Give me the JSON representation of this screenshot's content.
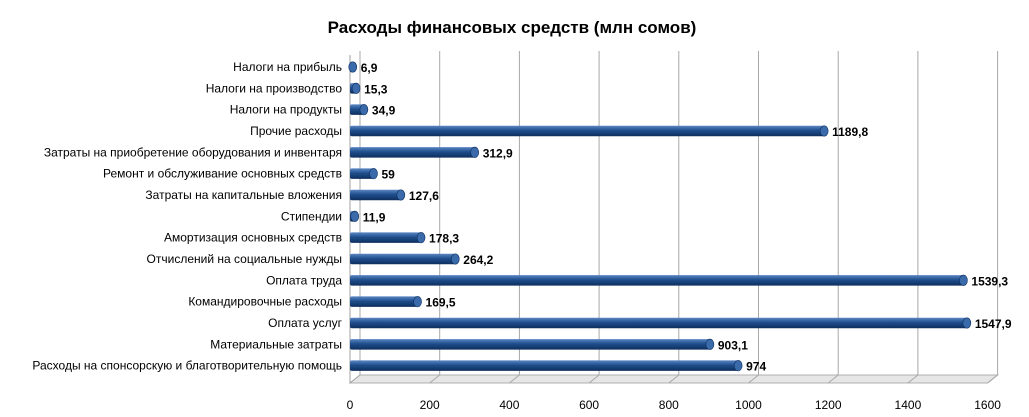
{
  "chart_data": {
    "type": "bar",
    "orientation": "horizontal",
    "title": "Расходы финансовых средств (млн сомов)",
    "xlabel": "",
    "ylabel": "",
    "xlim": [
      0,
      1600
    ],
    "x_ticks": [
      "0",
      "200",
      "400",
      "600",
      "800",
      "1000",
      "1200",
      "1400",
      "1600"
    ],
    "grid": true,
    "legend": "none",
    "bar_color": "#1f4e8c",
    "categories": [
      "Налоги на прибыль",
      "Налоги на производство",
      "Налоги на продукты",
      "Прочие расходы",
      "Затраты на приобретение оборудования и инвентаря",
      "Ремонт и обслуживание основных средств",
      "Затраты на капитальные вложения",
      "Стипендии",
      "Амортизация основных средств",
      "Отчислений на социальные нужды",
      "Оплата труда",
      "Командировочные расходы",
      "Оплата услуг",
      "Материальные затраты",
      "Расходы на спонсорскую и благотворительную помощь"
    ],
    "values": [
      6.9,
      15.3,
      34.9,
      1189.8,
      312.9,
      59,
      127.6,
      11.9,
      178.3,
      264.2,
      1539.3,
      169.5,
      1547.9,
      903.1,
      974
    ],
    "value_labels": [
      "6,9",
      "15,3",
      "34,9",
      "1189,8",
      "312,9",
      "59",
      "127,6",
      "11,9",
      "178,3",
      "264,2",
      "1539,3",
      "169,5",
      "1547,9",
      "903,1",
      "974"
    ]
  }
}
